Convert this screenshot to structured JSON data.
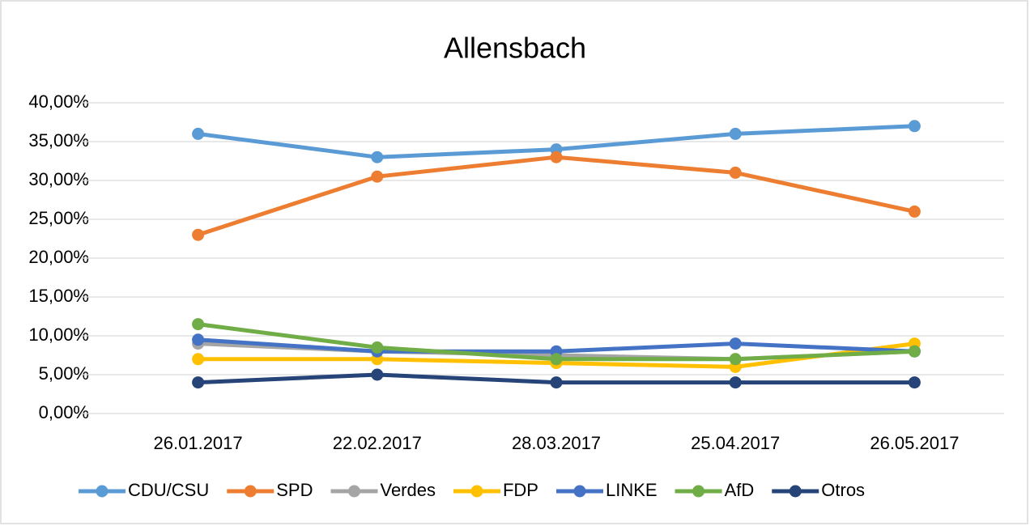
{
  "chart_data": {
    "type": "line",
    "title": "Allensbach",
    "categories": [
      "26.01.2017",
      "22.02.2017",
      "28.03.2017",
      "25.04.2017",
      "26.05.2017"
    ],
    "series": [
      {
        "name": "CDU/CSU",
        "color": "#5b9bd5",
        "values": [
          36,
          33,
          34,
          36,
          37
        ]
      },
      {
        "name": "SPD",
        "color": "#ed7d31",
        "values": [
          23,
          30.5,
          33,
          31,
          26
        ]
      },
      {
        "name": "Verdes",
        "color": "#a5a5a5",
        "values": [
          9,
          8,
          7.5,
          7,
          8
        ]
      },
      {
        "name": "FDP",
        "color": "#ffc000",
        "values": [
          7,
          7,
          6.5,
          6,
          9
        ]
      },
      {
        "name": "LINKE",
        "color": "#4472c4",
        "values": [
          9.5,
          8,
          8,
          9,
          8
        ]
      },
      {
        "name": "AfD",
        "color": "#70ad47",
        "values": [
          11.5,
          8.5,
          7,
          7,
          8
        ]
      },
      {
        "name": "Otros",
        "color": "#264478",
        "values": [
          4,
          5,
          4,
          4,
          4
        ]
      }
    ],
    "ylim": [
      0,
      40
    ],
    "yticks": [
      {
        "value": 0,
        "label": "0,00%"
      },
      {
        "value": 5,
        "label": "5,00%"
      },
      {
        "value": 10,
        "label": "10,00%"
      },
      {
        "value": 15,
        "label": "15,00%"
      },
      {
        "value": 20,
        "label": "20,00%"
      },
      {
        "value": 25,
        "label": "25,00%"
      },
      {
        "value": 30,
        "label": "30,00%"
      },
      {
        "value": 35,
        "label": "35,00%"
      },
      {
        "value": 40,
        "label": "40,00%"
      }
    ],
    "grid": true,
    "legend": "bottom"
  }
}
